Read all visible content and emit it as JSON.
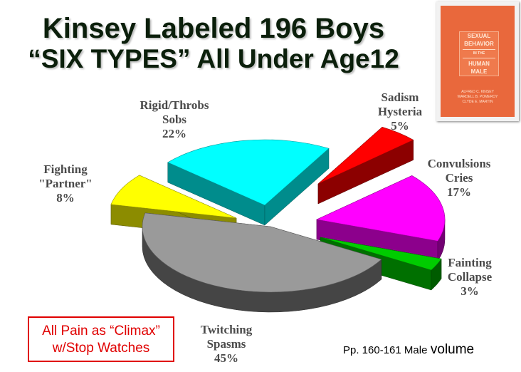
{
  "slide": {
    "title_line1": "Kinsey Labeled 196 Boys",
    "title_line2": "“SIX TYPES” All Under Age12",
    "note_line1": "All Pain as “Climax”",
    "note_line2": "w/Stop Watches",
    "page_ref": "Pp. 160-161 Male",
    "page_ref_word": "volume"
  },
  "book": {
    "top_text": "",
    "title_lines": [
      "SEXUAL",
      "BEHAVIOR",
      "IN THE",
      "HUMAN",
      "MALE"
    ],
    "authors": [
      "ALFRED C. KINSEY",
      "WARDELL B. POMEROY",
      "CLYDE E. MARTIN"
    ],
    "cover_color": "#e9683c"
  },
  "chart_data": {
    "type": "pie",
    "style": "3d-exploded",
    "slices": [
      {
        "label": [
          "Sadism",
          "Hysteria",
          "5%"
        ],
        "value": 5,
        "color": "#ff0000"
      },
      {
        "label": [
          "Convulsions",
          "Cries",
          "17%"
        ],
        "value": 17,
        "color": "#ff00ff"
      },
      {
        "label": [
          "Fainting",
          "Collapse",
          "3%"
        ],
        "value": 3,
        "color": "#00cc00"
      },
      {
        "label": [
          "Twitching",
          "Spasms",
          "45%"
        ],
        "value": 45,
        "color": "#9a9a9a"
      },
      {
        "label": [
          "Fighting",
          "\"Partner\"",
          "8%"
        ],
        "value": 8,
        "color": "#ffff00"
      },
      {
        "label": [
          "Rigid/Throbs",
          "Sobs",
          "22%"
        ],
        "value": 22,
        "color": "#00ffff"
      }
    ]
  }
}
